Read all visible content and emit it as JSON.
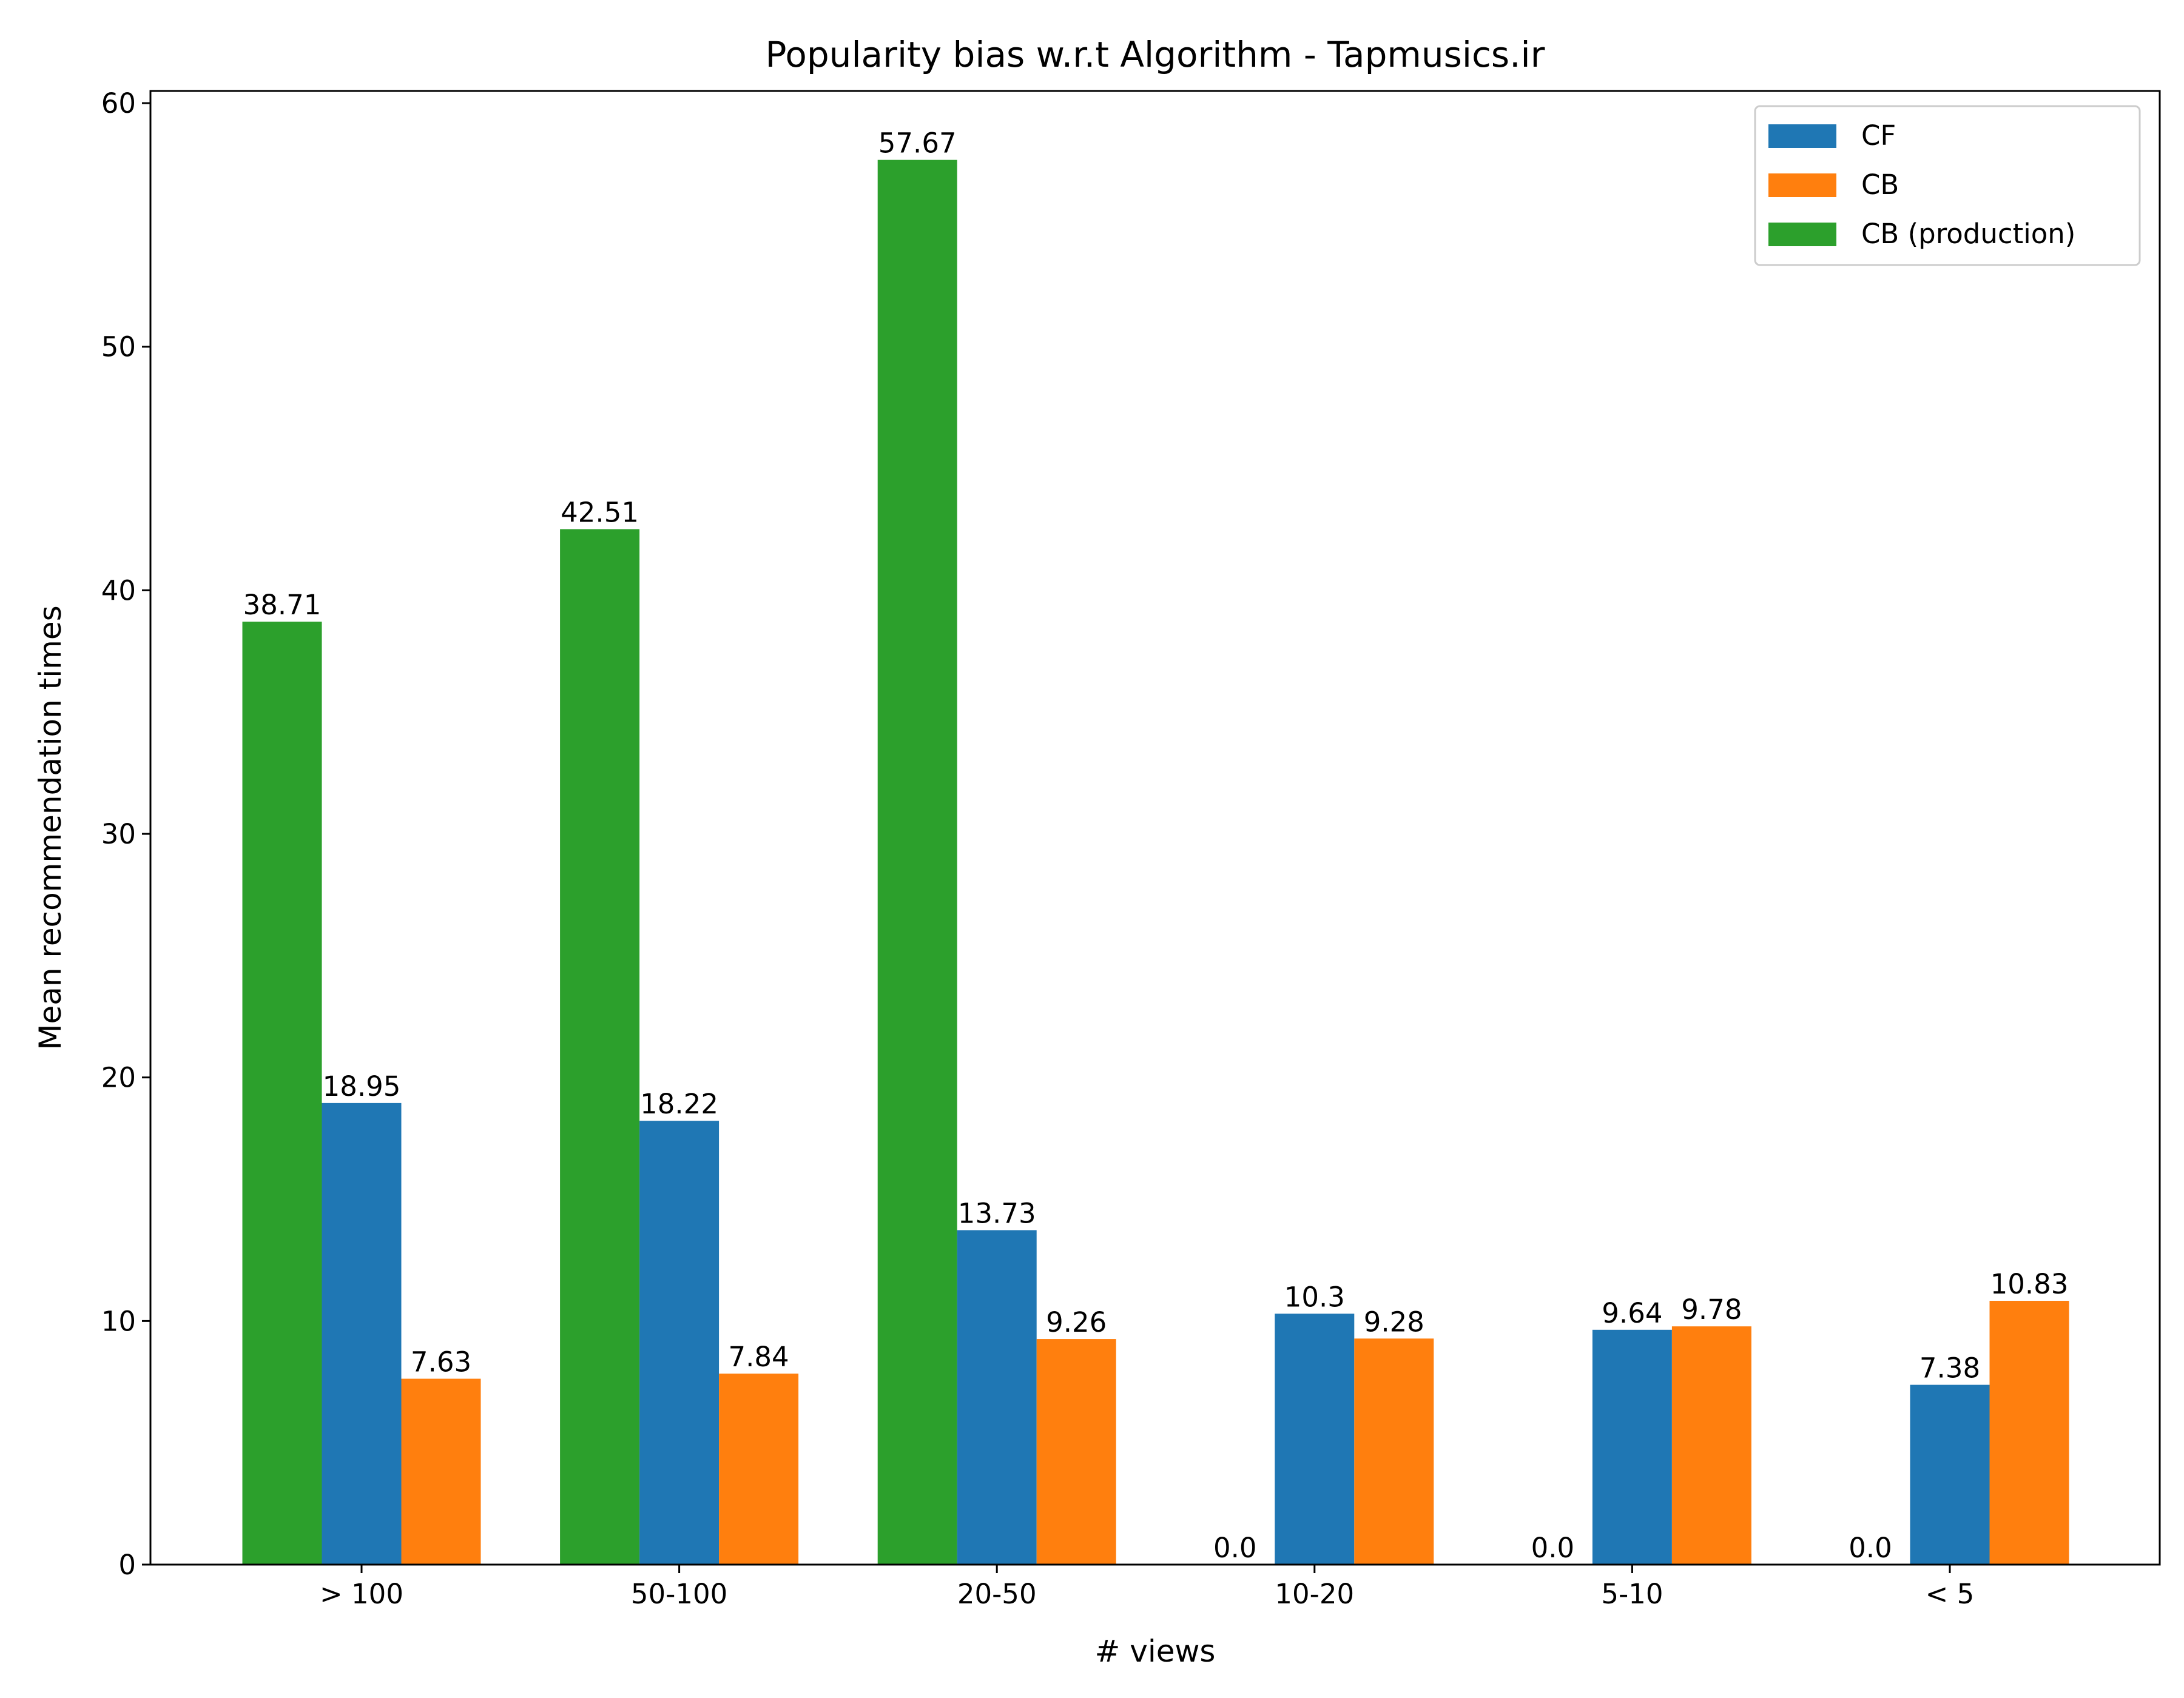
{
  "chart_data": {
    "type": "bar",
    "title": "Popularity bias w.r.t Algorithm - Tapmusics.ir",
    "xlabel": "# views",
    "ylabel": "Mean recommendation times",
    "categories": [
      "> 100",
      "50-100",
      "20-50",
      "10-20",
      "5-10",
      "< 5"
    ],
    "ylim": [
      0,
      60.5
    ],
    "yticks": [
      0,
      10,
      20,
      30,
      40,
      50,
      60
    ],
    "grid": false,
    "legend_position": "top-right",
    "series": [
      {
        "name": "CB (production)",
        "color": "#2ca02c",
        "values": [
          38.71,
          42.51,
          57.67,
          0.0,
          0.0,
          0.0
        ],
        "labels": [
          "38.71",
          "42.51",
          "57.67",
          "0.0",
          "0.0",
          "0.0"
        ]
      },
      {
        "name": "CF",
        "color": "#1f77b4",
        "values": [
          18.95,
          18.22,
          13.73,
          10.3,
          9.64,
          7.38
        ],
        "labels": [
          "18.95",
          "18.22",
          "13.73",
          "10.3",
          "9.64",
          "7.38"
        ]
      },
      {
        "name": "CB",
        "color": "#ff7f0e",
        "values": [
          7.63,
          7.84,
          9.26,
          9.28,
          9.78,
          10.83
        ],
        "labels": [
          "7.63",
          "7.84",
          "9.26",
          "9.28",
          "9.78",
          "10.83"
        ]
      }
    ],
    "legend_order": [
      "CF",
      "CB",
      "CB (production)"
    ]
  }
}
